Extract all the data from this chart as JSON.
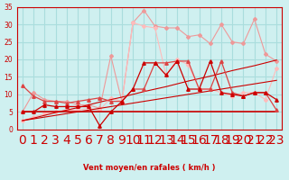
{
  "xlabel": "Vent moyen/en rafales ( km/h )",
  "x": [
    0,
    1,
    2,
    3,
    4,
    5,
    6,
    7,
    8,
    9,
    10,
    11,
    12,
    13,
    14,
    15,
    16,
    17,
    18,
    19,
    20,
    21,
    22,
    23
  ],
  "background_color": "#cff0f0",
  "grid_color": "#aadddd",
  "line1": [
    2.5,
    3.0,
    3.5,
    4.0,
    4.5,
    5.0,
    5.5,
    6.0,
    6.5,
    7.0,
    7.5,
    8.0,
    8.5,
    9.0,
    9.5,
    10.0,
    10.5,
    11.0,
    11.5,
    12.0,
    12.5,
    13.0,
    13.5,
    14.0
  ],
  "line2": [
    2.5,
    3.2,
    4.0,
    4.8,
    5.5,
    6.2,
    7.0,
    7.8,
    8.5,
    9.2,
    10.0,
    10.8,
    11.5,
    12.2,
    13.0,
    13.8,
    14.5,
    15.2,
    16.0,
    16.8,
    17.5,
    18.2,
    19.0,
    19.8
  ],
  "line3_upper": [
    12.5,
    9.5,
    8.0,
    8.0,
    7.5,
    8.0,
    8.5,
    9.0,
    8.0,
    8.0,
    11.5,
    11.5,
    19.0,
    19.0,
    19.5,
    19.5,
    11.5,
    11.5,
    19.5,
    10.5,
    9.5,
    10.5,
    10.5,
    5.5
  ],
  "line4_mid1": [
    5.0,
    5.0,
    7.0,
    6.5,
    6.5,
    6.5,
    6.5,
    1.0,
    5.0,
    8.0,
    11.5,
    19.0,
    19.0,
    15.5,
    19.5,
    11.5,
    11.5,
    19.5,
    10.5,
    10.0,
    9.5,
    10.5,
    10.5,
    8.5
  ],
  "line5_top1": [
    5.0,
    10.5,
    8.5,
    8.0,
    8.0,
    7.0,
    7.0,
    6.0,
    21.0,
    8.0,
    30.5,
    34.0,
    29.5,
    29.0,
    29.0,
    26.5,
    27.0,
    24.5,
    30.0,
    25.0,
    24.5,
    31.5,
    21.5,
    19.5
  ],
  "line6_top2": [
    2.5,
    3.5,
    4.5,
    5.0,
    5.5,
    5.5,
    6.0,
    5.5,
    9.0,
    8.0,
    30.5,
    29.5,
    29.0,
    15.5,
    20.0,
    18.5,
    11.5,
    11.5,
    10.5,
    9.5,
    10.5,
    10.5,
    8.5,
    17.5
  ],
  "line7_flat": [
    5.0,
    5.0,
    5.0,
    5.0,
    5.0,
    5.0,
    5.0,
    5.0,
    5.0,
    5.0,
    5.0,
    5.0,
    5.0,
    5.0,
    5.0,
    5.0,
    5.0,
    5.0,
    5.0,
    5.0,
    5.0,
    5.0,
    5.0,
    5.0
  ],
  "ylim": [
    0,
    35
  ],
  "yticks": [
    0,
    5,
    10,
    15,
    20,
    25,
    30,
    35
  ]
}
